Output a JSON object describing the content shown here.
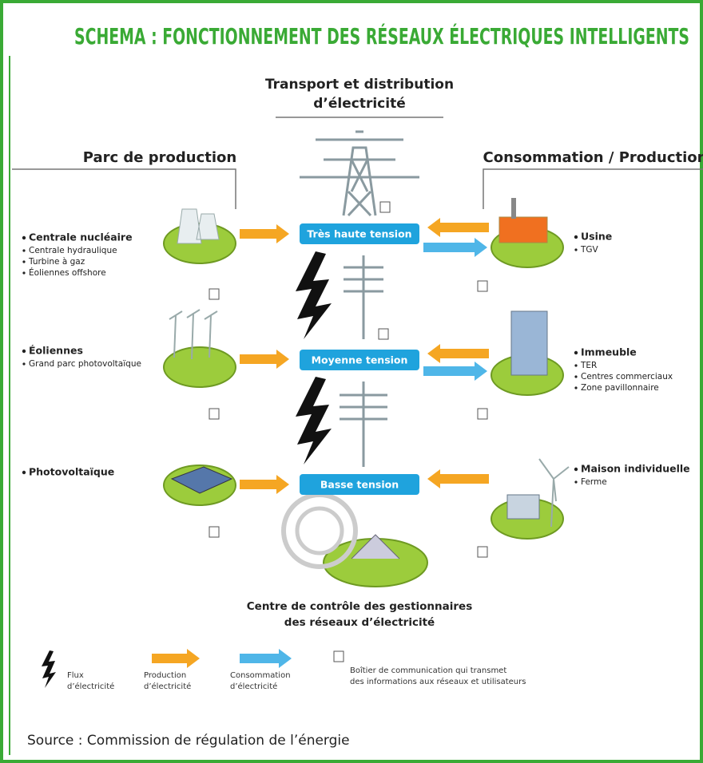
{
  "title": "SCHEMA : FONCTIONNEMENT DES RÉSEAUX ÉLECTRIQUES INTELLIGENTS",
  "transport": {
    "lines": [
      "Transport et distribution",
      "d’électricité"
    ]
  },
  "left": {
    "heading": "Parc de production",
    "groups": [
      {
        "items": [
          "Centrale nucléaire",
          "Centrale hydraulique",
          "Turbine à gaz",
          "Éoliennes offshore"
        ]
      },
      {
        "items": [
          "Éoliennes",
          "Grand parc photovoltaïque"
        ]
      },
      {
        "items": [
          "Photovoltaïque"
        ]
      }
    ]
  },
  "right": {
    "heading": "Consommation / Production",
    "groups": [
      {
        "items": [
          "Usine",
          "TGV"
        ]
      },
      {
        "items": [
          "Immeuble",
          "TER",
          "Centres commerciaux",
          "Zone pavillonnaire"
        ]
      },
      {
        "items": [
          "Maison individuelle",
          "Ferme"
        ]
      }
    ]
  },
  "tensions": [
    "Très haute tension",
    "Moyenne tension",
    "Basse tension"
  ],
  "control_center": {
    "lines": [
      "Centre de contrôle des gestionnaires",
      "des réseaux d’électricité"
    ]
  },
  "legend": [
    {
      "lines": [
        "Flux",
        "d’électricité"
      ]
    },
    {
      "lines": [
        "Production",
        "d’électricité"
      ]
    },
    {
      "lines": [
        "Consommation",
        "d’électricité"
      ]
    },
    {
      "lines": [
        "Boîtier de communication qui transmet",
        "des informations aux réseaux et utilisateurs"
      ]
    }
  ],
  "source": "Source : Commission de régulation de l’énergie"
}
